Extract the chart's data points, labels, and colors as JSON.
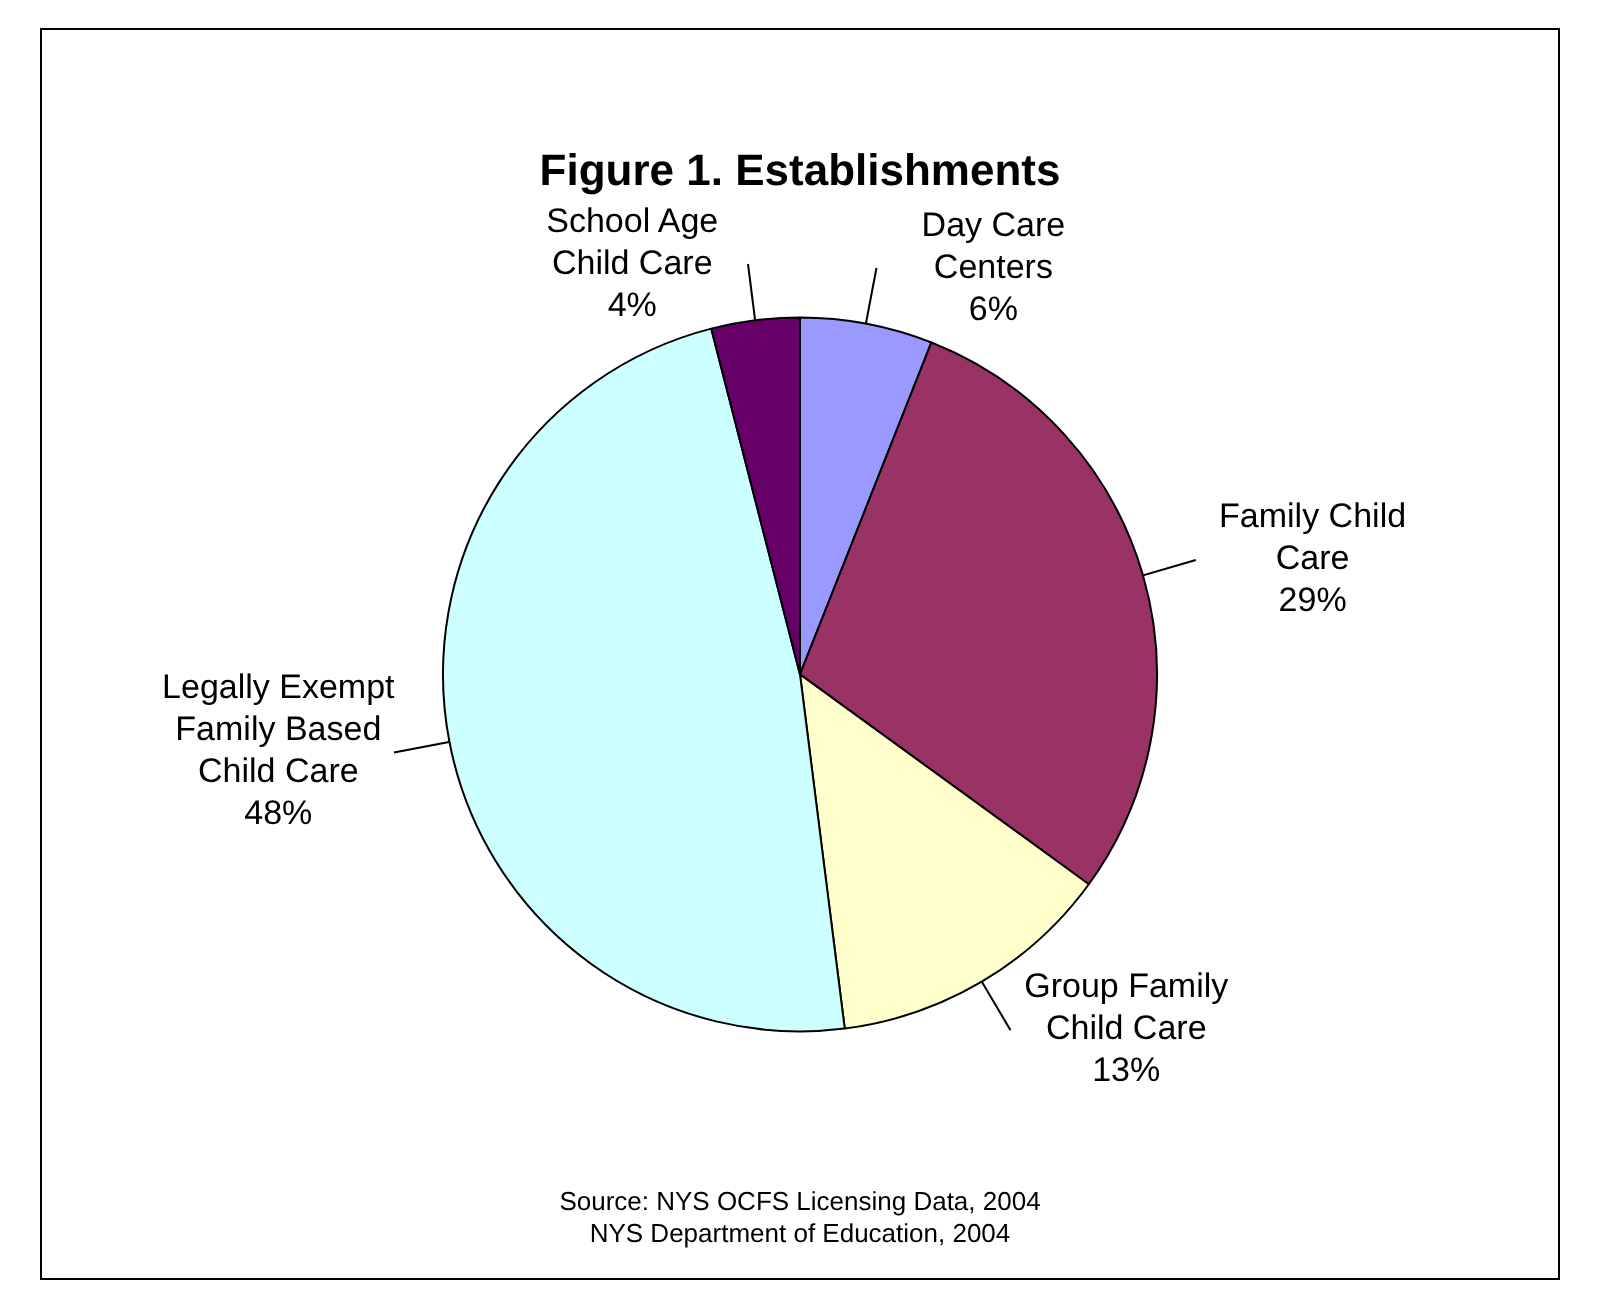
{
  "chart_data": {
    "type": "pie",
    "title": "Figure 1. Establishments",
    "categories": [
      "Day Care Centers",
      "Family Child Care",
      "Group Family Child Care",
      "Legally Exempt Family Based Child Care",
      "School Age Child Care"
    ],
    "values": [
      6,
      29,
      13,
      48,
      4
    ],
    "colors": [
      "#9999ff",
      "#993366",
      "#ffffcc",
      "#ccffff",
      "#660066"
    ],
    "value_labels": [
      "6%",
      "29%",
      "13%",
      "48%",
      "4%"
    ],
    "legend": false,
    "annotations": [
      "Source: NYS OCFS Licensing Data, 2004",
      "NYS Department of Education, 2004"
    ]
  }
}
